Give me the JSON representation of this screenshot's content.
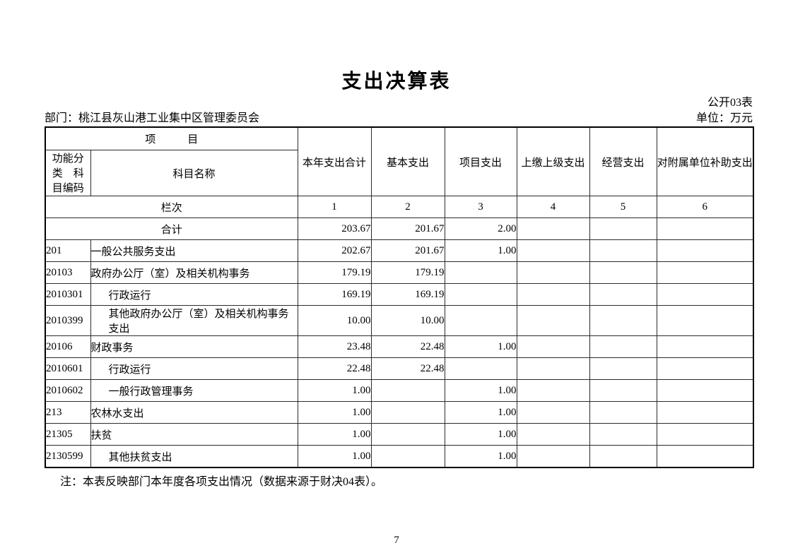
{
  "page": {
    "title": "支出决算表",
    "table_code": "公开03表",
    "department_label": "部门：桃江县灰山港工业集中区管理委员会",
    "unit_label": "单位：万元",
    "note": "注：本表反映部门本年度各项支出情况（数据来源于财决04表）。",
    "page_number": "7"
  },
  "table": {
    "header": {
      "project_group": "项　　　目",
      "code_col": "功能分\n类　科\n目编码",
      "subject_col": "科目名称",
      "value_cols": [
        "本年支出合计",
        "基本支出",
        "项目支出",
        "上缴上级支出",
        "经营支出",
        "对附属单位补助支出"
      ]
    },
    "lanci_label": "栏次",
    "lanci_numbers": [
      "1",
      "2",
      "3",
      "4",
      "5",
      "6"
    ],
    "total_row": {
      "label": "合计",
      "values": [
        "203.67",
        "201.67",
        "2.00",
        "",
        "",
        ""
      ]
    },
    "rows": [
      {
        "code": "201",
        "name": "一般公共服务支出",
        "indent": 0,
        "values": [
          "202.67",
          "201.67",
          "1.00",
          "",
          "",
          ""
        ]
      },
      {
        "code": "20103",
        "name": "政府办公厅（室）及相关机构事务",
        "indent": 0,
        "values": [
          "179.19",
          "179.19",
          "",
          "",
          "",
          ""
        ]
      },
      {
        "code": "2010301",
        "name": "行政运行",
        "indent": 1,
        "values": [
          "169.19",
          "169.19",
          "",
          "",
          "",
          ""
        ]
      },
      {
        "code": "2010399",
        "name": "其他政府办公厅（室）及相关机构事务支出",
        "indent": 1,
        "values": [
          "10.00",
          "10.00",
          "",
          "",
          "",
          ""
        ]
      },
      {
        "code": "20106",
        "name": "财政事务",
        "indent": 0,
        "values": [
          "23.48",
          "22.48",
          "1.00",
          "",
          "",
          ""
        ]
      },
      {
        "code": "2010601",
        "name": "行政运行",
        "indent": 1,
        "values": [
          "22.48",
          "22.48",
          "",
          "",
          "",
          ""
        ]
      },
      {
        "code": "2010602",
        "name": "一般行政管理事务",
        "indent": 1,
        "values": [
          "1.00",
          "",
          "1.00",
          "",
          "",
          ""
        ]
      },
      {
        "code": "213",
        "name": "农林水支出",
        "indent": 0,
        "values": [
          "1.00",
          "",
          "1.00",
          "",
          "",
          ""
        ]
      },
      {
        "code": "21305",
        "name": "扶贫",
        "indent": 0,
        "values": [
          "1.00",
          "",
          "1.00",
          "",
          "",
          ""
        ]
      },
      {
        "code": "2130599",
        "name": "其他扶贫支出",
        "indent": 1,
        "values": [
          "1.00",
          "",
          "1.00",
          "",
          "",
          ""
        ]
      }
    ]
  }
}
